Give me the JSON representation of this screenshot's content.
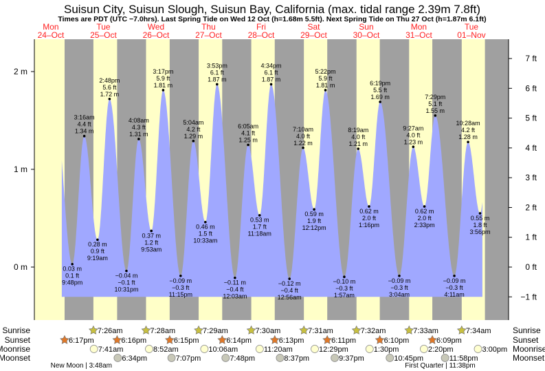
{
  "chart_data": {
    "type": "area",
    "title": "Suisun City, Suisun Slough, Suisun Bay, California (max. tidal range 2.39m 7.8ft)",
    "subtitle": "Times are PDT (UTC −7.0hrs). Last Spring Tide on Wed 12 Oct (h=1.68m 5.5ft). Next Spring Tide on Thu 27 Oct (h=1.87m 6.1ft)",
    "ylabel_left": "m",
    "ylabel_right": "ft",
    "ylim_m": [
      -0.5,
      2.3
    ],
    "left_ticks": [
      "0 m",
      "1 m",
      "2 m"
    ],
    "left_tick_values": [
      0,
      1,
      2
    ],
    "right_ticks": [
      "−1 ft",
      "0 ft",
      "1 ft",
      "2 ft",
      "3 ft",
      "4 ft",
      "5 ft",
      "6 ft",
      "7 ft"
    ],
    "right_tick_values": [
      -1,
      0,
      1,
      2,
      3,
      4,
      5,
      6,
      7
    ],
    "days": [
      {
        "weekday": "Mon",
        "date": "24–Oct"
      },
      {
        "weekday": "Tue",
        "date": "25–Oct"
      },
      {
        "weekday": "Wed",
        "date": "26–Oct"
      },
      {
        "weekday": "Thu",
        "date": "27–Oct"
      },
      {
        "weekday": "Fri",
        "date": "28–Oct"
      },
      {
        "weekday": "Sat",
        "date": "29–Oct"
      },
      {
        "weekday": "Sun",
        "date": "30–Oct"
      },
      {
        "weekday": "Mon",
        "date": "31–Oct"
      },
      {
        "weekday": "Tue",
        "date": "01–Nov"
      }
    ],
    "extremes": [
      {
        "day": 0,
        "time": "9:48pm",
        "m": "0.03 m",
        "ft": "0.1 ft",
        "h": 0.03,
        "type": "low"
      },
      {
        "day": 1,
        "time": "3:16am",
        "m": "1.34 m",
        "ft": "4.4 ft",
        "h": 1.34,
        "type": "high"
      },
      {
        "day": 1,
        "time": "9:19am",
        "m": "0.28 m",
        "ft": "0.9 ft",
        "h": 0.28,
        "type": "low"
      },
      {
        "day": 1,
        "time": "2:48pm",
        "m": "1.72 m",
        "ft": "5.6 ft",
        "h": 1.72,
        "type": "high"
      },
      {
        "day": 1,
        "time": "10:31pm",
        "m": "−0.04 m",
        "ft": "−0.1 ft",
        "h": -0.04,
        "type": "low"
      },
      {
        "day": 2,
        "time": "4:08am",
        "m": "1.31 m",
        "ft": "4.3 ft",
        "h": 1.31,
        "type": "high"
      },
      {
        "day": 2,
        "time": "9:53am",
        "m": "0.37 m",
        "ft": "1.2 ft",
        "h": 0.37,
        "type": "low"
      },
      {
        "day": 2,
        "time": "3:17pm",
        "m": "1.81 m",
        "ft": "5.9 ft",
        "h": 1.81,
        "type": "high"
      },
      {
        "day": 2,
        "time": "11:15pm",
        "m": "−0.09 m",
        "ft": "−0.3 ft",
        "h": -0.09,
        "type": "low"
      },
      {
        "day": 3,
        "time": "5:04am",
        "m": "1.29 m",
        "ft": "4.2 ft",
        "h": 1.29,
        "type": "high"
      },
      {
        "day": 3,
        "time": "10:33am",
        "m": "0.46 m",
        "ft": "1.5 ft",
        "h": 0.46,
        "type": "low"
      },
      {
        "day": 3,
        "time": "3:53pm",
        "m": "1.87 m",
        "ft": "6.1 ft",
        "h": 1.87,
        "type": "high"
      },
      {
        "day": 4,
        "time": "12:03am",
        "m": "−0.11 m",
        "ft": "−0.4 ft",
        "h": -0.11,
        "type": "low"
      },
      {
        "day": 4,
        "time": "6:05am",
        "m": "1.25 m",
        "ft": "4.1 ft",
        "h": 1.25,
        "type": "high"
      },
      {
        "day": 4,
        "time": "11:18am",
        "m": "0.53 m",
        "ft": "1.7 ft",
        "h": 0.53,
        "type": "low"
      },
      {
        "day": 4,
        "time": "4:34pm",
        "m": "1.87 m",
        "ft": "6.1 ft",
        "h": 1.87,
        "type": "high"
      },
      {
        "day": 5,
        "time": "12:56am",
        "m": "−0.12 m",
        "ft": "−0.4 ft",
        "h": -0.12,
        "type": "low"
      },
      {
        "day": 5,
        "time": "7:10am",
        "m": "1.22 m",
        "ft": "4.0 ft",
        "h": 1.22,
        "type": "high"
      },
      {
        "day": 5,
        "time": "12:12pm",
        "m": "0.59 m",
        "ft": "1.9 ft",
        "h": 0.59,
        "type": "low"
      },
      {
        "day": 5,
        "time": "5:22pm",
        "m": "1.81 m",
        "ft": "5.9 ft",
        "h": 1.81,
        "type": "high"
      },
      {
        "day": 6,
        "time": "1:57am",
        "m": "−0.10 m",
        "ft": "−0.3 ft",
        "h": -0.1,
        "type": "low"
      },
      {
        "day": 6,
        "time": "8:19am",
        "m": "1.21 m",
        "ft": "4.0 ft",
        "h": 1.21,
        "type": "high"
      },
      {
        "day": 6,
        "time": "1:16pm",
        "m": "0.62 m",
        "ft": "2.0 ft",
        "h": 0.62,
        "type": "low"
      },
      {
        "day": 6,
        "time": "6:19pm",
        "m": "1.69 m",
        "ft": "5.5 ft",
        "h": 1.69,
        "type": "high"
      },
      {
        "day": 7,
        "time": "3:04am",
        "m": "−0.09 m",
        "ft": "−0.3 ft",
        "h": -0.09,
        "type": "low"
      },
      {
        "day": 7,
        "time": "9:27am",
        "m": "1.23 m",
        "ft": "4.0 ft",
        "h": 1.23,
        "type": "high"
      },
      {
        "day": 7,
        "time": "2:33pm",
        "m": "0.62 m",
        "ft": "2.0 ft",
        "h": 0.62,
        "type": "low"
      },
      {
        "day": 7,
        "time": "7:29pm",
        "m": "1.55 m",
        "ft": "5.1 ft",
        "h": 1.55,
        "type": "high"
      },
      {
        "day": 8,
        "time": "4:11am",
        "m": "−0.09 m",
        "ft": "−0.3 ft",
        "h": -0.09,
        "type": "low"
      },
      {
        "day": 8,
        "time": "10:28am",
        "m": "1.28 m",
        "ft": "4.2 ft",
        "h": 1.28,
        "type": "high"
      },
      {
        "day": 8,
        "time": "3:56pm",
        "m": "0.55 m",
        "ft": "1.8 ft",
        "h": 0.55,
        "type": "low"
      }
    ],
    "sun_moon": {
      "row_labels": {
        "sunrise": "Sunrise",
        "sunset": "Sunset",
        "moonrise": "Moonrise",
        "moonset": "Moonset"
      },
      "sunrise": [
        {
          "day": 1,
          "time": "7:26am"
        },
        {
          "day": 2,
          "time": "7:28am"
        },
        {
          "day": 3,
          "time": "7:29am"
        },
        {
          "day": 4,
          "time": "7:30am"
        },
        {
          "day": 5,
          "time": "7:31am"
        },
        {
          "day": 6,
          "time": "7:32am"
        },
        {
          "day": 7,
          "time": "7:33am"
        },
        {
          "day": 8,
          "time": "7:34am"
        }
      ],
      "sunset": [
        {
          "day": 0,
          "time": "6:17pm"
        },
        {
          "day": 1,
          "time": "6:16pm"
        },
        {
          "day": 2,
          "time": "6:15pm"
        },
        {
          "day": 3,
          "time": "6:14pm"
        },
        {
          "day": 4,
          "time": "6:13pm"
        },
        {
          "day": 5,
          "time": "6:11pm"
        },
        {
          "day": 6,
          "time": "6:10pm"
        },
        {
          "day": 7,
          "time": "6:09pm"
        }
      ],
      "moonrise": [
        {
          "day": 1,
          "time": "7:41am"
        },
        {
          "day": 2,
          "time": "8:52am"
        },
        {
          "day": 3,
          "time": "10:06am"
        },
        {
          "day": 4,
          "time": "11:20am"
        },
        {
          "day": 5,
          "time": "12:29pm"
        },
        {
          "day": 6,
          "time": "1:30pm"
        },
        {
          "day": 7,
          "time": "2:20pm"
        },
        {
          "day": 8,
          "time": "3:00pm"
        }
      ],
      "moonset": [
        {
          "day": 1,
          "time": "6:34pm"
        },
        {
          "day": 2,
          "time": "7:07pm"
        },
        {
          "day": 3,
          "time": "7:48pm"
        },
        {
          "day": 4,
          "time": "8:37pm"
        },
        {
          "day": 5,
          "time": "9:37pm"
        },
        {
          "day": 6,
          "time": "10:45pm"
        },
        {
          "day": 7,
          "time": "11:58pm"
        }
      ],
      "phases": [
        {
          "day": 1,
          "time": "3:48am",
          "label": "New Moon | 3:48am"
        },
        {
          "day": 7,
          "time": "11:38pm",
          "label": "First Quarter | 11:38pm"
        }
      ]
    },
    "colors": {
      "water": "#a0a8ff",
      "day": "#ffffc8",
      "night": "#a0a0a0",
      "day_label": "#ff2020",
      "sunrise": "#c8c040",
      "sunset": "#e07828",
      "moonrise": "#ffffd0",
      "moonset": "#c8c8b8"
    }
  }
}
